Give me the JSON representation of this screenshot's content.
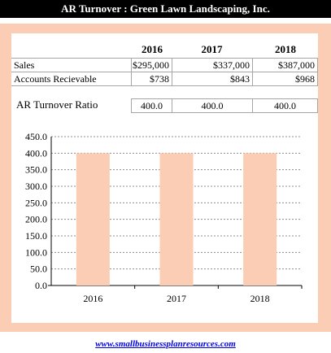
{
  "title": "AR Turnover : Green Lawn Landscaping, Inc.",
  "table": {
    "years": [
      "2016",
      "2017",
      "2018"
    ],
    "rows": [
      {
        "label": "Sales",
        "values": [
          "$295,000",
          "$337,000",
          "$387,000"
        ]
      },
      {
        "label": "Accounts Recievable",
        "values": [
          "$738",
          "$843",
          "$968"
        ]
      }
    ],
    "ratio": {
      "label": "AR Turnover Ratio",
      "values": [
        "400.0",
        "400.0",
        "400.0"
      ]
    }
  },
  "chart_data": {
    "type": "bar",
    "categories": [
      "2016",
      "2017",
      "2018"
    ],
    "values": [
      400.0,
      400.0,
      400.0
    ],
    "ylim": [
      0,
      450
    ],
    "yticks": [
      "0.0",
      "50.0",
      "100.0",
      "150.0",
      "200.0",
      "250.0",
      "300.0",
      "350.0",
      "400.0",
      "450.0"
    ],
    "bar_color": "#fbcdb4",
    "grid": true
  },
  "footer": {
    "link": "www.smallbusinessplanresources.com"
  },
  "colors": {
    "panel_bg": "#fbcdb4",
    "title_bg": "#000000",
    "link": "#0000ee"
  }
}
